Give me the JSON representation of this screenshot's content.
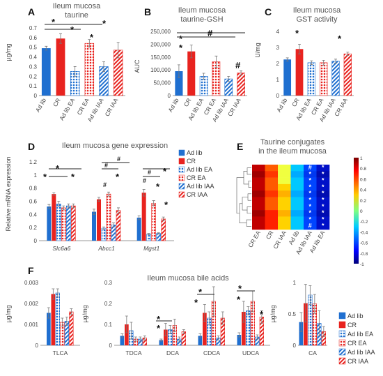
{
  "palette": {
    "blue": "#1f6fd0",
    "red": "#e8231f",
    "patterns": [
      "solid",
      "solid",
      "dots",
      "dots",
      "hatch",
      "hatch"
    ]
  },
  "chart_data": [
    {
      "id": "A",
      "type": "bar",
      "letter": "A",
      "title": [
        "Ileum mucosa",
        "taurine"
      ],
      "ylabel": "µg/mg",
      "ylim": [
        0,
        0.7
      ],
      "yticks": [
        "0",
        "0.1",
        "0.2",
        "0.3",
        "0.4",
        "0.5",
        "0.6",
        "0.7"
      ],
      "categories": [
        "Ad lib",
        "CR",
        "Ad lib EA",
        "CR EA",
        "Ad lib IAA",
        "CR IAA"
      ],
      "values": [
        0.49,
        0.59,
        0.25,
        0.54,
        0.3,
        0.47
      ],
      "errors": [
        0.02,
        0.05,
        0.05,
        0.04,
        0.05,
        0.08
      ],
      "annotations": [
        "*",
        "*",
        "*",
        "*"
      ]
    },
    {
      "id": "B",
      "type": "bar",
      "letter": "B",
      "title": [
        "Ileum mucosa",
        "taurine-GSH"
      ],
      "ylabel": "AUC",
      "ylim": [
        0,
        250000
      ],
      "yticks": [
        "0",
        "50,000",
        "100,000",
        "150,000",
        "200,000",
        "250,000"
      ],
      "categories": [
        "Ad lib",
        "CR",
        "Ad lib EA",
        "CR EA",
        "Ad lib IAA",
        "CR IAA"
      ],
      "values": [
        95000,
        172000,
        75000,
        132000,
        65000,
        88000
      ],
      "errors": [
        25000,
        25000,
        12000,
        22000,
        10000,
        8000
      ],
      "annotations": [
        "*",
        "*",
        "#",
        "#"
      ]
    },
    {
      "id": "C",
      "type": "bar",
      "letter": "C",
      "title": [
        "Ileum mucosa",
        "GST activity"
      ],
      "ylabel": "U/mg",
      "ylim": [
        0,
        4
      ],
      "yticks": [
        "0",
        "1",
        "2",
        "3",
        "4"
      ],
      "categories": [
        "Ad lib",
        "CR",
        "Ad lib EA",
        "CR EA",
        "Ad lib IAA",
        "CR IAA"
      ],
      "values": [
        2.25,
        2.9,
        2.05,
        2.05,
        2.15,
        2.6
      ],
      "errors": [
        0.1,
        0.3,
        0.12,
        0.15,
        0.12,
        0.1
      ],
      "annotations": [
        "*",
        "*"
      ]
    },
    {
      "id": "D",
      "type": "bar",
      "letter": "D",
      "title": [
        "Ileum mucosa gene expression"
      ],
      "ylabel": "Relative mRNA expression",
      "ylim": [
        0,
        1.2
      ],
      "yticks": [
        "0",
        "0.2",
        "0.4",
        "0.6",
        "0.8",
        "1",
        "1.2"
      ],
      "categories": [
        "Slc6a6",
        "Abcc1",
        "Mgst1"
      ],
      "series": [
        {
          "name": "Ad lib",
          "values": [
            0.52,
            0.44,
            0.35
          ],
          "errors": [
            0.03,
            0.04,
            0.03
          ]
        },
        {
          "name": "CR",
          "values": [
            0.71,
            0.63,
            0.73
          ],
          "errors": [
            0.02,
            0.03,
            0.05
          ]
        },
        {
          "name": "Ad lib EA",
          "values": [
            0.56,
            0.19,
            0.1
          ],
          "errors": [
            0.04,
            0.02,
            0.01
          ]
        },
        {
          "name": "CR EA",
          "values": [
            0.5,
            0.71,
            0.57
          ],
          "errors": [
            0.03,
            0.03,
            0.04
          ]
        },
        {
          "name": "Ad lib IAA",
          "values": [
            0.53,
            0.24,
            0.11
          ],
          "errors": [
            0.03,
            0.03,
            0.01
          ]
        },
        {
          "name": "CR IAA",
          "values": [
            0.53,
            0.46,
            0.33
          ],
          "errors": [
            0.03,
            0.04,
            0.03
          ]
        }
      ],
      "annotations": [
        "*",
        "*",
        "*",
        "#",
        "#",
        "#",
        "*",
        "#",
        "#",
        "*",
        "*",
        "*"
      ]
    },
    {
      "id": "E",
      "type": "heatmap",
      "letter": "E",
      "title": [
        "Taurine conjugates",
        "in the ileum mucosa"
      ],
      "columns": [
        "CR EA",
        "CR",
        "CR IAA",
        "Ad lib",
        "Ad lib IAA",
        "Ad lib EA"
      ],
      "colorbar_ticks": [
        "1",
        "0.8",
        "0.6",
        "0.4",
        "0.2",
        "0",
        "-0.2",
        "-0.4",
        "-0.6",
        "-0.8",
        "-1"
      ],
      "cell_marks": [
        "#",
        "*",
        "*",
        "*",
        "*",
        "*",
        "*",
        "*",
        "*",
        "#"
      ]
    },
    {
      "id": "F",
      "type": "bar",
      "letter": "F",
      "title": [
        "Ileum mucosa bile acids"
      ],
      "ylabel": "µg/mg",
      "legend": [
        "Ad lib",
        "CR",
        "Ad lib EA",
        "CR EA",
        "Ad lib IAA",
        "CR IAA"
      ],
      "subpanels": [
        {
          "ylim": [
            0,
            0.003
          ],
          "yticks": [
            "0",
            "0.001",
            "0.002",
            "0.003"
          ],
          "categories": [
            "TLCA"
          ],
          "values": [
            [
              0.00155,
              0.00245,
              0.0025,
              0.0011,
              0.00115,
              0.0016
            ]
          ],
          "errors": [
            [
              0.00025,
              0.00025,
              0.0002,
              0.0002,
              0.0002,
              0.00015
            ]
          ],
          "annotations": []
        },
        {
          "ylim": [
            0,
            0.3
          ],
          "yticks": [
            "0",
            "0.1",
            "0.2",
            "0.3"
          ],
          "categories": [
            "TDCA",
            "DCA",
            "CDCA",
            "UDCA"
          ],
          "values": [
            [
              0.045,
              0.1,
              0.07,
              0.03,
              0.03,
              0.035
            ],
            [
              0.025,
              0.075,
              0.075,
              0.095,
              0.03,
              0.065
            ],
            [
              0.045,
              0.155,
              0.13,
              0.21,
              0.035,
              0.13
            ],
            [
              0.05,
              0.16,
              0.165,
              0.21,
              0.04,
              0.135
            ]
          ],
          "errors": [
            [
              0.01,
              0.04,
              0.04,
              0.01,
              0.01,
              0.01
            ],
            [
              0.005,
              0.03,
              0.02,
              0.03,
              0.01,
              0.01
            ],
            [
              0.01,
              0.04,
              0.03,
              0.07,
              0.01,
              0.03
            ],
            [
              0.01,
              0.05,
              0.02,
              0.05,
              0.01,
              0.03
            ]
          ],
          "annotations": [
            "*",
            "*",
            "*",
            "*",
            "*",
            "*",
            "*"
          ]
        },
        {
          "ylim": [
            0,
            1
          ],
          "yticks": [
            "0",
            "0.5",
            "1"
          ],
          "categories": [
            "CA"
          ],
          "values": [
            [
              0.37,
              0.67,
              0.8,
              0.66,
              0.35,
              0.22
            ]
          ],
          "errors": [
            [
              0.15,
              0.3,
              0.15,
              0.15,
              0.2,
              0.08
            ]
          ],
          "annotations": []
        }
      ]
    }
  ]
}
